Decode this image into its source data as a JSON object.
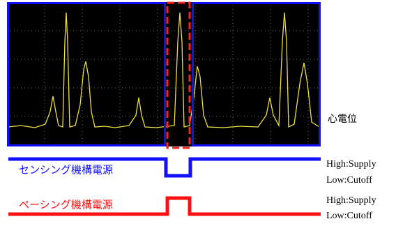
{
  "waveform": {
    "label": "心電位"
  },
  "signals": [
    {
      "label": "センシング機構電源",
      "high": "High:Supply",
      "low": "Low:Cutoff"
    },
    {
      "label": "ペーシング機構電源",
      "high": "High:Supply",
      "low": "Low:Cutoff"
    }
  ]
}
